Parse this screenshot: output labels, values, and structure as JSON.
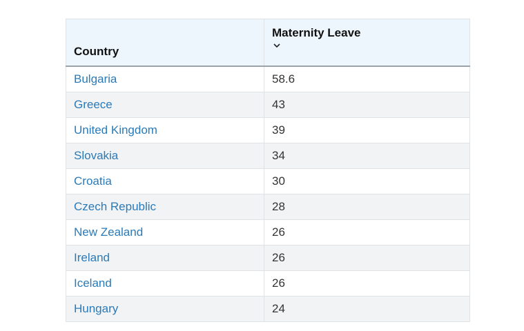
{
  "table": {
    "headers": {
      "country": "Country",
      "maternity_leave": "Maternity Leave"
    },
    "sort_icon": "chevron-down-icon",
    "link_color": "#2a7ab8",
    "header_bg": "#eef6fd",
    "rows": [
      {
        "country": "Bulgaria",
        "value": "58.6"
      },
      {
        "country": "Greece",
        "value": "43"
      },
      {
        "country": "United Kingdom",
        "value": "39"
      },
      {
        "country": "Slovakia",
        "value": "34"
      },
      {
        "country": "Croatia",
        "value": "30"
      },
      {
        "country": "Czech Republic",
        "value": "28"
      },
      {
        "country": "New Zealand",
        "value": "26"
      },
      {
        "country": "Ireland",
        "value": "26"
      },
      {
        "country": "Iceland",
        "value": "26"
      },
      {
        "country": "Hungary",
        "value": "24"
      }
    ]
  }
}
